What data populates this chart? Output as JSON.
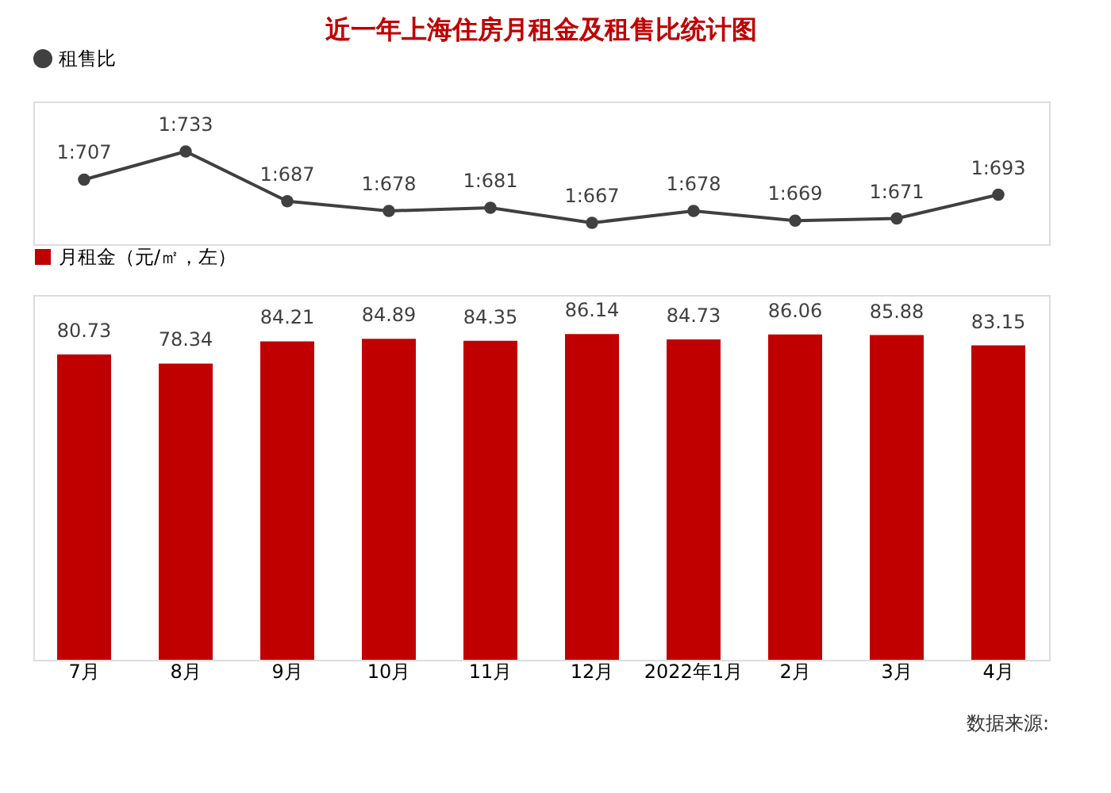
{
  "chart_data": [
    {
      "type": "line",
      "title": "近一年上海住房月租金及租售比统计图",
      "categories": [
        null,
        null,
        null,
        null,
        null,
        null,
        null,
        null,
        null,
        null
      ],
      "series": [
        {
          "name": "租售比",
          "color": "#404040",
          "values": [
            707,
            733,
            687,
            678,
            681,
            667,
            678,
            669,
            671,
            693
          ],
          "value_labels": [
            "1:707",
            "1:733",
            "1:687",
            "1:678",
            "1:681",
            "1:667",
            "1:678",
            "1:669",
            "1:671",
            "1:693"
          ]
        }
      ],
      "legend": "top",
      "grid": false,
      "tick_labels": false,
      "marker": "circle",
      "line_style": "solid"
    },
    {
      "type": "bar",
      "categories": [
        "7月",
        "8月",
        "9月",
        "10月",
        "11月",
        "12月",
        "2022年1月",
        "2月",
        "3月",
        "4月"
      ],
      "series": [
        {
          "name": "月租金（元/㎡，左）",
          "color": "#c00000",
          "values": [
            80.73,
            78.34,
            84.21,
            84.89,
            84.35,
            86.14,
            84.73,
            86.06,
            85.88,
            83.15
          ]
        }
      ],
      "data_labels": true,
      "legend": "top",
      "grid": false,
      "tick_labels": "x",
      "annotations": [
        "数据来源:"
      ]
    }
  ]
}
